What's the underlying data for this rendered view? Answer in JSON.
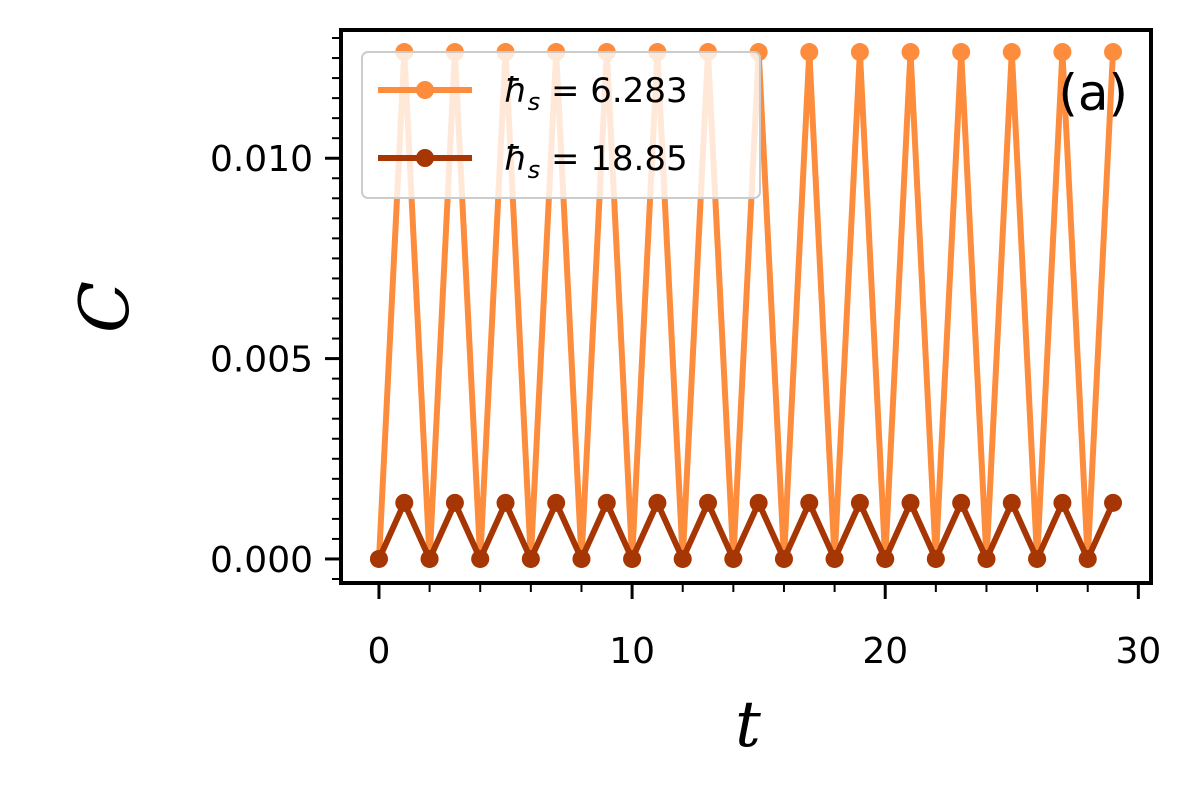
{
  "chart_data": {
    "type": "line",
    "panel_label": "(a)",
    "xlabel": "t",
    "ylabel": "C",
    "xlim": [
      -1.5,
      30.5
    ],
    "ylim": [
      -0.0006,
      0.0132
    ],
    "x_ticks": [
      0,
      10,
      20,
      30
    ],
    "x_tick_labels": [
      "0",
      "10",
      "20",
      "30"
    ],
    "y_ticks": [
      0.0,
      0.005,
      0.01
    ],
    "y_tick_labels": [
      "0.000",
      "0.005",
      "0.010"
    ],
    "grid": false,
    "legend_position": "top-left",
    "x": [
      0,
      1,
      2,
      3,
      4,
      5,
      6,
      7,
      8,
      9,
      10,
      11,
      12,
      13,
      14,
      15,
      16,
      17,
      18,
      19,
      20,
      21,
      22,
      23,
      24,
      25,
      26,
      27,
      28,
      29
    ],
    "series": [
      {
        "name": "ħs = 6.283",
        "legend_main": "ħ",
        "legend_sub": "s",
        "legend_value": " = 6.283",
        "color": "#fd8d3c",
        "values": [
          0,
          0.01265,
          0,
          0.01265,
          0,
          0.01265,
          0,
          0.01265,
          0,
          0.01265,
          0,
          0.01265,
          0,
          0.01265,
          0,
          0.01265,
          0,
          0.01265,
          0,
          0.01265,
          0,
          0.01265,
          0,
          0.01265,
          0,
          0.01265,
          0,
          0.01265,
          0,
          0.01265
        ]
      },
      {
        "name": "ħs = 18.85",
        "legend_main": "ħ",
        "legend_sub": "s",
        "legend_value": " = 18.85",
        "color": "#a63603",
        "values": [
          0,
          0.0014,
          0,
          0.0014,
          0,
          0.0014,
          0,
          0.0014,
          0,
          0.0014,
          0,
          0.0014,
          0,
          0.0014,
          0,
          0.0014,
          0,
          0.0014,
          0,
          0.0014,
          0,
          0.0014,
          0,
          0.0014,
          0,
          0.0014,
          0,
          0.0014,
          0,
          0.0014
        ]
      }
    ]
  }
}
